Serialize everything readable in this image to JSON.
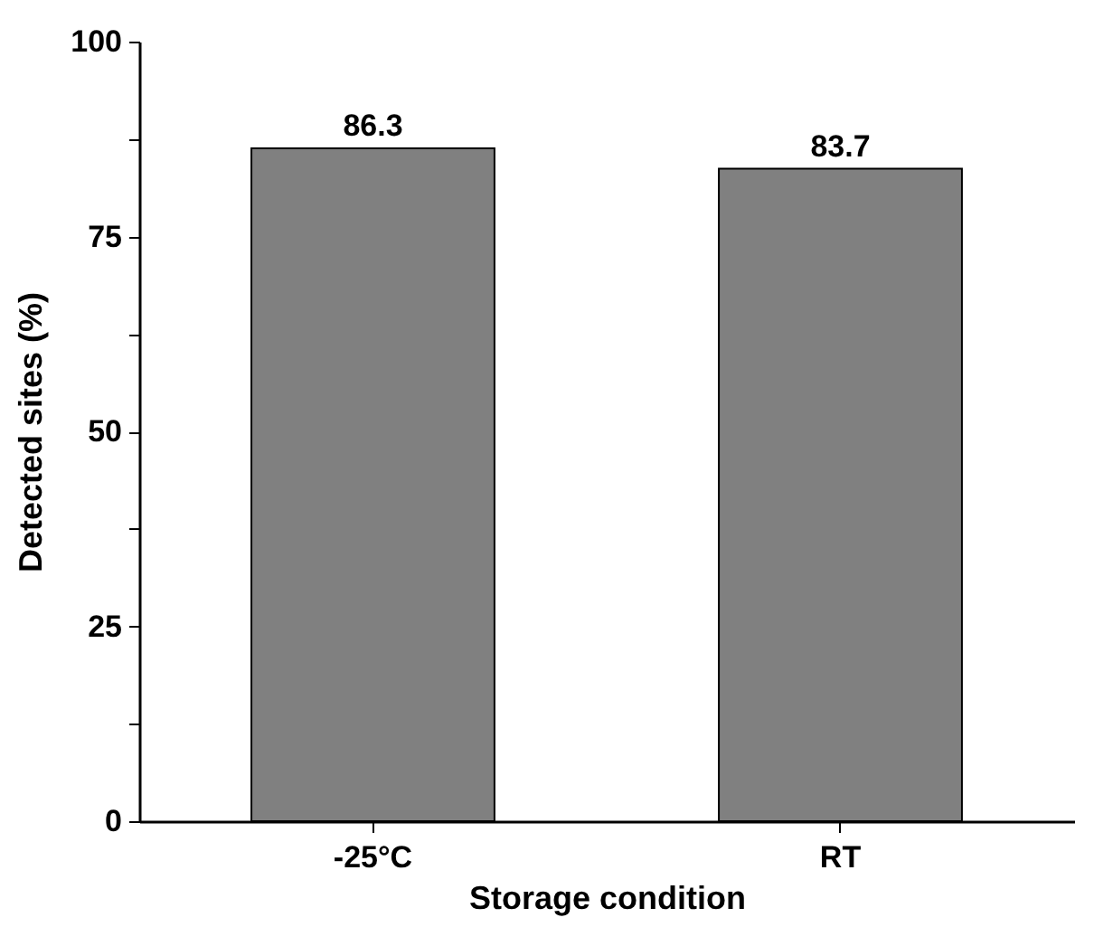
{
  "chart_data": {
    "type": "bar",
    "xlabel": "Storage condition",
    "ylabel": "Detected sites (%)",
    "categories": [
      "-25°C",
      "RT"
    ],
    "values": [
      86.3,
      83.7
    ],
    "color": "#808080",
    "ylim": [
      0,
      100
    ],
    "yticks": [
      0,
      {
        "value": 12.5,
        "label": null
      },
      25,
      {
        "value": 37.5,
        "label": null
      },
      50,
      {
        "value": 62.5,
        "label": null
      },
      75,
      {
        "value": 87.5,
        "label": null
      },
      100
    ],
    "data_labels": true
  }
}
